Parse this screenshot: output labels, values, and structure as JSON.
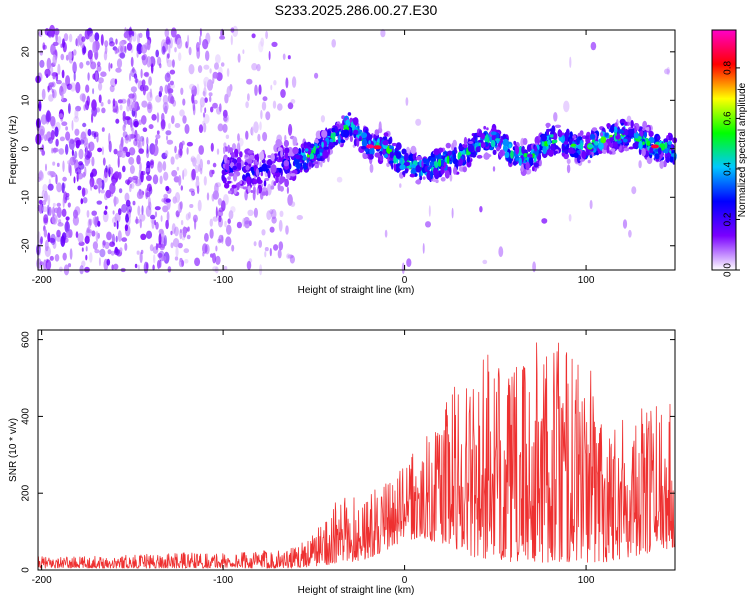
{
  "title": "S233.2025.286.00.27.E30",
  "chart_data": [
    {
      "type": "heatmap",
      "title": "S233.2025.286.00.27.E30",
      "xlabel": "Height of straight line (km)",
      "ylabel": "Frequency (Hz)",
      "xlim": [
        -202,
        149
      ],
      "ylim": [
        -25,
        24.5
      ],
      "xticks": [
        -200,
        -100,
        0,
        100
      ],
      "yticks": [
        -20,
        -10,
        0,
        10,
        20
      ],
      "colorbar": {
        "label": "Normalized spectral amplitude",
        "range": [
          0.0,
          0.95
        ],
        "ticks": [
          0.0,
          0.2,
          0.4,
          0.6,
          0.8
        ],
        "colormap": [
          "#ffffff",
          "#7a00ff",
          "#0000ff",
          "#00c8ff",
          "#00ff00",
          "#ffff00",
          "#ff0000",
          "#ff00c8"
        ]
      },
      "ridge_frequency_track": {
        "x": [
          -95,
          -80,
          -65,
          -50,
          -40,
          -30,
          -25,
          -20,
          -10,
          0,
          10,
          20,
          30,
          40,
          50,
          60,
          70,
          80,
          90,
          100,
          110,
          120,
          130,
          140,
          149
        ],
        "y": [
          -4,
          -5,
          -3,
          -1,
          2,
          5,
          3,
          1,
          0,
          -3,
          -4,
          -3,
          -2,
          1,
          2,
          -1,
          -2,
          2,
          1,
          0,
          2,
          3,
          2,
          0,
          0
        ]
      },
      "peak_amplitude_points": [
        {
          "x": -19,
          "y": 0.5,
          "value": 0.9
        },
        {
          "x": -15,
          "y": 0.3,
          "value": 0.85
        },
        {
          "x": 138,
          "y": 0.5,
          "value": 0.85
        }
      ]
    },
    {
      "type": "line",
      "xlabel": "Height of straight line (km)",
      "ylabel": "SNR (10 * v/v)",
      "xlim": [
        -202,
        149
      ],
      "ylim": [
        0,
        625
      ],
      "xticks": [
        -200,
        -100,
        0,
        100
      ],
      "yticks": [
        0,
        200,
        400,
        600
      ],
      "color": "#ee3030",
      "envelope": {
        "x": [
          -202,
          -180,
          -150,
          -120,
          -100,
          -80,
          -60,
          -50,
          -40,
          -30,
          -20,
          -10,
          0,
          10,
          20,
          30,
          40,
          50,
          60,
          70,
          80,
          90,
          100,
          110,
          120,
          130,
          140,
          149
        ],
        "y_low": [
          5,
          5,
          5,
          5,
          5,
          5,
          5,
          10,
          15,
          20,
          30,
          50,
          80,
          80,
          70,
          50,
          30,
          30,
          20,
          20,
          20,
          20,
          20,
          20,
          30,
          40,
          50,
          60
        ],
        "y_high": [
          35,
          35,
          40,
          45,
          45,
          50,
          60,
          100,
          170,
          200,
          200,
          230,
          280,
          330,
          420,
          520,
          590,
          540,
          520,
          600,
          620,
          600,
          540,
          470,
          440,
          420,
          460,
          470
        ]
      }
    }
  ]
}
